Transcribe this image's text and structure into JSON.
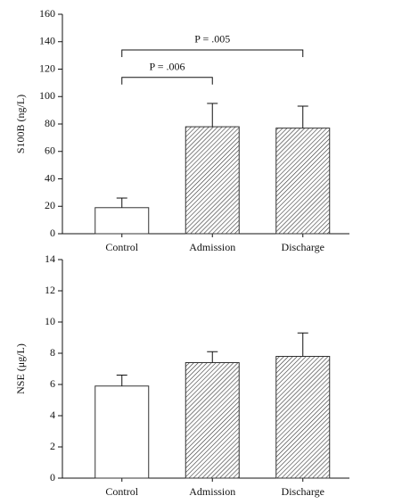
{
  "chart_data": [
    {
      "type": "bar",
      "y_label": "S100B (ng/L)",
      "categories": [
        "Control",
        "Admission",
        "Discharge"
      ],
      "values": [
        19,
        78,
        77
      ],
      "errors": [
        7,
        17,
        16
      ],
      "hatch": [
        false,
        true,
        true
      ],
      "color": "#333333",
      "ylim": [
        0,
        160
      ],
      "yticks": [
        0,
        20,
        40,
        60,
        80,
        100,
        120,
        140,
        160
      ],
      "annotations": [
        {
          "text": "P = .006",
          "from": "Control",
          "to": "Admission",
          "y": 114
        },
        {
          "text": "P = .005",
          "from": "Control",
          "to": "Discharge",
          "y": 134
        }
      ]
    },
    {
      "type": "bar",
      "y_label": "NSE (μg/L)",
      "categories": [
        "Control",
        "Admission",
        "Discharge"
      ],
      "values": [
        5.9,
        7.4,
        7.8
      ],
      "errors": [
        0.7,
        0.7,
        1.5
      ],
      "hatch": [
        false,
        true,
        true
      ],
      "color": "#333333",
      "ylim": [
        0,
        14
      ],
      "yticks": [
        0,
        2,
        4,
        6,
        8,
        10,
        12,
        14
      ]
    }
  ]
}
